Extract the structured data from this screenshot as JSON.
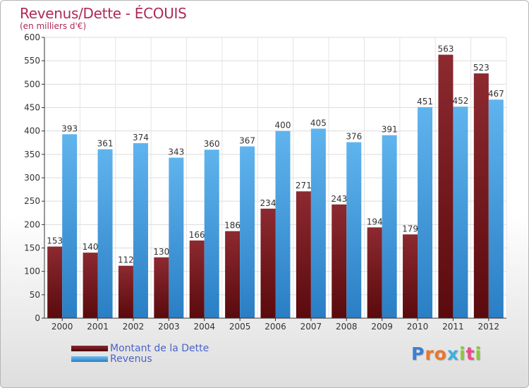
{
  "header": {
    "title": "Revenus/Dette - ÉCOUIS",
    "subtitle": "(en milliers d'€)"
  },
  "colors": {
    "dette": "#8a1a1f",
    "revenus": "#3d95d8",
    "title": "#b0285a",
    "legend_text": "#4a63c8"
  },
  "legend": {
    "items": [
      {
        "label": "Montant de la Dette",
        "color_key": "dette"
      },
      {
        "label": "Revenus",
        "color_key": "revenus"
      }
    ]
  },
  "logo": {
    "text": "Proxiti",
    "letters": [
      {
        "ch": "P",
        "color": "#3b7fd4"
      },
      {
        "ch": "r",
        "color": "#e8772e"
      },
      {
        "ch": "o",
        "color": "#e8772e"
      },
      {
        "ch": "x",
        "color": "#3db0e0"
      },
      {
        "ch": "i",
        "color": "#8cc63f"
      },
      {
        "ch": "t",
        "color": "#e94b8a"
      },
      {
        "ch": "i",
        "color": "#8cc63f"
      }
    ]
  },
  "chart_data": {
    "type": "bar",
    "title": "Revenus/Dette - ÉCOUIS",
    "subtitle": "(en milliers d'€)",
    "categories": [
      "2000",
      "2001",
      "2002",
      "2003",
      "2004",
      "2005",
      "2006",
      "2007",
      "2008",
      "2009",
      "2010",
      "2011",
      "2012"
    ],
    "series": [
      {
        "name": "Montant de la Dette",
        "values": [
          153,
          140,
          112,
          130,
          166,
          186,
          234,
          271,
          243,
          194,
          179,
          563,
          523
        ]
      },
      {
        "name": "Revenus",
        "values": [
          393,
          361,
          374,
          343,
          360,
          367,
          400,
          405,
          376,
          391,
          451,
          452,
          467
        ]
      }
    ],
    "ylim": [
      0,
      600
    ],
    "yticks": [
      0,
      50,
      100,
      150,
      200,
      250,
      300,
      350,
      400,
      450,
      500,
      550,
      600
    ],
    "grid": true,
    "legend_position": "bottom-left"
  }
}
